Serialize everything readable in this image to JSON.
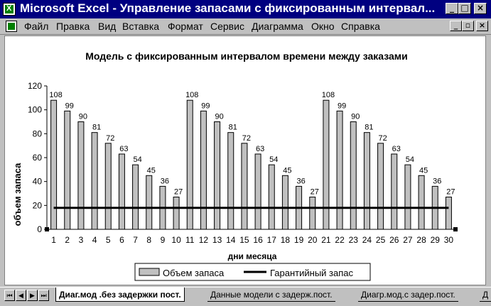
{
  "window": {
    "title": "Microsoft Excel - Управление запасами с фиксированным интервал...",
    "controls": [
      "_",
      "□",
      "×"
    ]
  },
  "menu": {
    "items": [
      "Файл",
      "Правка",
      "Вид",
      "Вставка",
      "Формат",
      "Сервис",
      "Диаграмма",
      "Окно",
      "Справка"
    ],
    "doc_controls": [
      "_",
      "▫",
      "×"
    ]
  },
  "chart_data": {
    "type": "bar",
    "title": "Модель с фиксированным интервалом времени между заказами",
    "xlabel": "дни месяца",
    "ylabel": "объем запаса",
    "ylim": [
      0,
      120
    ],
    "yticks": [
      0,
      20,
      40,
      60,
      80,
      100,
      120
    ],
    "categories": [
      "1",
      "2",
      "3",
      "4",
      "5",
      "6",
      "7",
      "8",
      "9",
      "10",
      "11",
      "12",
      "13",
      "14",
      "15",
      "16",
      "17",
      "18",
      "19",
      "20",
      "21",
      "22",
      "23",
      "24",
      "25",
      "26",
      "27",
      "28",
      "29",
      "30"
    ],
    "series": [
      {
        "name": "Объем запаса",
        "kind": "bar",
        "color": "#c0c0c0",
        "values": [
          108,
          99,
          90,
          81,
          72,
          63,
          54,
          45,
          36,
          27,
          108,
          99,
          90,
          81,
          72,
          63,
          54,
          45,
          36,
          27,
          108,
          99,
          90,
          81,
          72,
          63,
          54,
          45,
          36,
          27
        ]
      },
      {
        "name": "Гарантийный запас",
        "kind": "line",
        "color": "#000000",
        "value": 18
      }
    ],
    "legend": "bottom",
    "grid": false
  },
  "sheets": {
    "nav": [
      "⏮",
      "◀",
      "▶",
      "⏭"
    ],
    "tabs": [
      "Диаг.мод .без задержки пост.",
      "Данные модели с задерж.пост.",
      "Диагр.мод.с задер.пост.",
      "Д"
    ],
    "active": 0
  }
}
